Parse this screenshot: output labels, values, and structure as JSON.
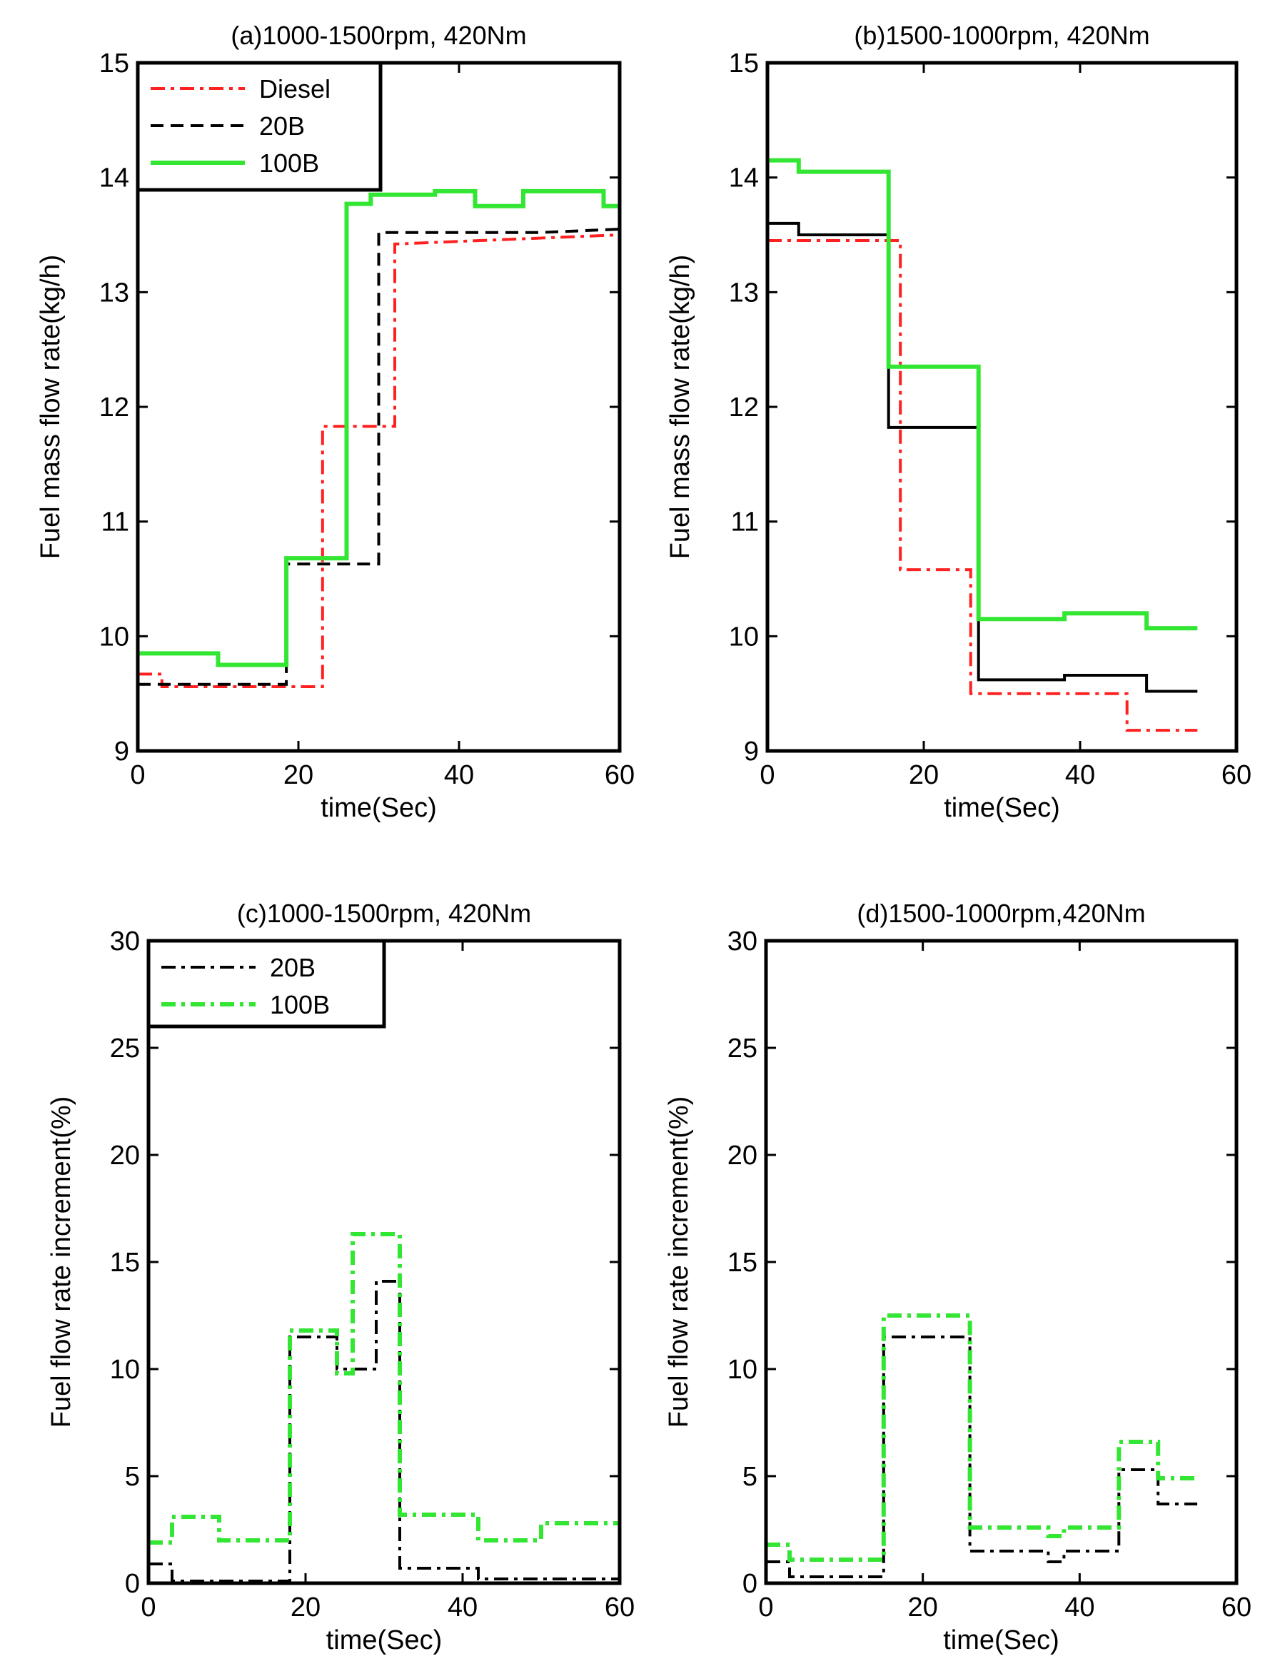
{
  "chart_data": [
    {
      "id": "a",
      "type": "line",
      "title": "(a)1000-1500rpm, 420Nm",
      "xlabel": "time(Sec)",
      "ylabel": "Fuel mass flow rate(kg/h)",
      "xlim": [
        0,
        60
      ],
      "ylim": [
        9,
        15
      ],
      "xticks": [
        0,
        20,
        40,
        60
      ],
      "yticks": [
        9,
        10,
        11,
        12,
        13,
        14,
        15
      ],
      "legend_position": "top-left",
      "series": [
        {
          "name": "Diesel",
          "color": "#ff2020",
          "style": "dashdot",
          "x": [
            0,
            3,
            3,
            23,
            23,
            32,
            32,
            60
          ],
          "y": [
            9.67,
            9.67,
            9.56,
            9.56,
            11.83,
            11.83,
            13.42,
            13.5
          ]
        },
        {
          "name": "20B",
          "color": "#000000",
          "style": "dashed",
          "x": [
            0,
            18.5,
            18.5,
            30,
            30,
            50,
            60
          ],
          "y": [
            9.58,
            9.58,
            10.63,
            10.63,
            13.52,
            13.52,
            13.55
          ]
        },
        {
          "name": "100B",
          "color": "#33e633",
          "style": "solid",
          "x": [
            0,
            10,
            10,
            18.5,
            18.5,
            26,
            26,
            29,
            29,
            37,
            37,
            42,
            42,
            48,
            48,
            58,
            58,
            60
          ],
          "y": [
            9.85,
            9.85,
            9.75,
            9.75,
            10.68,
            10.68,
            13.77,
            13.77,
            13.85,
            13.85,
            13.88,
            13.88,
            13.75,
            13.75,
            13.88,
            13.88,
            13.75,
            13.75
          ]
        }
      ]
    },
    {
      "id": "b",
      "type": "line",
      "title": "(b)1500-1000rpm, 420Nm",
      "xlabel": "time(Sec)",
      "ylabel": "Fuel mass flow rate(kg/h)",
      "xlim": [
        0,
        60
      ],
      "ylim": [
        9,
        15
      ],
      "xticks": [
        0,
        20,
        40,
        60
      ],
      "yticks": [
        9,
        10,
        11,
        12,
        13,
        14,
        15
      ],
      "legend_position": "none",
      "series": [
        {
          "name": "Diesel",
          "color": "#ff2020",
          "style": "dashdot",
          "x": [
            0,
            17,
            17,
            26,
            26,
            46,
            46,
            55
          ],
          "y": [
            13.45,
            13.45,
            10.58,
            10.58,
            9.5,
            9.5,
            9.18,
            9.18
          ]
        },
        {
          "name": "20B",
          "color": "#000000",
          "style": "solid",
          "x": [
            0,
            4,
            4,
            15.5,
            15.5,
            27,
            27,
            38,
            38,
            48.5,
            48.5,
            55
          ],
          "y": [
            13.6,
            13.6,
            13.5,
            13.5,
            11.82,
            11.82,
            9.62,
            9.62,
            9.66,
            9.66,
            9.52,
            9.52
          ]
        },
        {
          "name": "100B",
          "color": "#33e633",
          "style": "solid",
          "x": [
            0,
            4,
            4,
            15.5,
            15.5,
            27,
            27,
            38,
            38,
            48.5,
            48.5,
            55
          ],
          "y": [
            14.15,
            14.15,
            14.05,
            14.05,
            12.35,
            12.35,
            10.15,
            10.15,
            10.2,
            10.2,
            10.07,
            10.07
          ]
        }
      ]
    },
    {
      "id": "c",
      "type": "line",
      "title": "(c)1000-1500rpm, 420Nm",
      "xlabel": "time(Sec)",
      "ylabel": "Fuel flow rate increment(%)",
      "xlim": [
        0,
        60
      ],
      "ylim": [
        0,
        30
      ],
      "xticks": [
        0,
        20,
        40,
        60
      ],
      "yticks": [
        0,
        5,
        10,
        15,
        20,
        25,
        30
      ],
      "legend_position": "top-left",
      "series": [
        {
          "name": "20B",
          "color": "#000000",
          "style": "dashdot",
          "x": [
            0,
            3,
            3,
            18,
            18,
            24,
            24,
            29,
            29,
            32,
            32,
            42,
            42,
            60
          ],
          "y": [
            0.9,
            0.9,
            0.1,
            0.1,
            11.5,
            11.5,
            10,
            10,
            14.1,
            14.1,
            0.7,
            0.7,
            0.2,
            0.2
          ]
        },
        {
          "name": "100B",
          "color": "#33e633",
          "style": "dashdot",
          "x": [
            0,
            3,
            3,
            9,
            9,
            18,
            18,
            24,
            24,
            26,
            26,
            32,
            32,
            42,
            42,
            50,
            50,
            60
          ],
          "y": [
            1.9,
            1.9,
            3.1,
            3.1,
            2.0,
            2.0,
            11.8,
            11.8,
            9.8,
            9.8,
            16.3,
            16.3,
            3.2,
            3.2,
            2.0,
            2.0,
            2.8,
            2.8
          ]
        }
      ]
    },
    {
      "id": "d",
      "type": "line",
      "title": "(d)1500-1000rpm,420Nm",
      "xlabel": "time(Sec)",
      "ylabel": "Fuel flow rate increment(%)",
      "xlim": [
        0,
        60
      ],
      "ylim": [
        0,
        30
      ],
      "xticks": [
        0,
        20,
        40,
        60
      ],
      "yticks": [
        0,
        5,
        10,
        15,
        20,
        25,
        30
      ],
      "legend_position": "none",
      "series": [
        {
          "name": "20B",
          "color": "#000000",
          "style": "dashdot",
          "x": [
            0,
            3,
            3,
            15,
            15,
            26,
            26,
            36,
            36,
            38,
            38,
            45,
            45,
            50,
            50,
            55
          ],
          "y": [
            1.0,
            1.0,
            0.3,
            0.3,
            11.5,
            11.5,
            1.5,
            1.5,
            1.0,
            1.0,
            1.5,
            1.5,
            5.3,
            5.3,
            3.7,
            3.7
          ]
        },
        {
          "name": "100B",
          "color": "#33e633",
          "style": "dashdot",
          "x": [
            0,
            3,
            3,
            15,
            15,
            26,
            26,
            36,
            36,
            38,
            38,
            45,
            45,
            50,
            50,
            55
          ],
          "y": [
            1.8,
            1.8,
            1.1,
            1.1,
            12.5,
            12.5,
            2.6,
            2.6,
            2.2,
            2.2,
            2.6,
            2.6,
            6.6,
            6.6,
            4.9,
            4.9
          ]
        }
      ]
    }
  ]
}
